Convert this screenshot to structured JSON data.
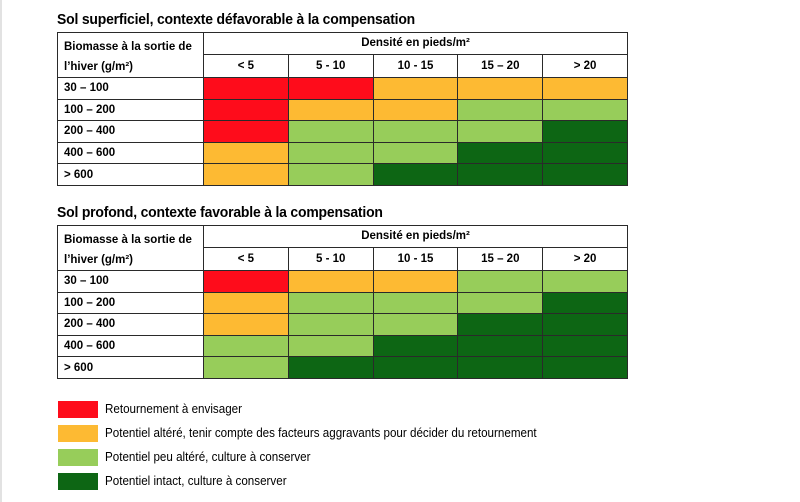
{
  "tables": [
    {
      "title": "Sol superficiel, contexte défavorable à la compensation",
      "row_header": "Biomasse à la sortie de l’hiver (g/m²)",
      "row_header_line1": "Biomasse à la sortie de",
      "row_header_line2": "l’hiver (g/m²)",
      "col_header": "Densité en pieds/m²",
      "columns": [
        "< 5",
        "5 - 10",
        "10 - 15",
        "15 – 20",
        "> 20"
      ],
      "rows": [
        {
          "label": "30 – 100",
          "cells": [
            "red",
            "red",
            "orange",
            "orange",
            "orange"
          ]
        },
        {
          "label": "100 – 200",
          "cells": [
            "red",
            "orange",
            "orange",
            "lightgreen",
            "lightgreen"
          ]
        },
        {
          "label": "200 – 400",
          "cells": [
            "red",
            "lightgreen",
            "lightgreen",
            "lightgreen",
            "darkgreen"
          ]
        },
        {
          "label": "400 – 600",
          "cells": [
            "orange",
            "lightgreen",
            "lightgreen",
            "darkgreen",
            "darkgreen"
          ]
        },
        {
          "label": "> 600",
          "cells": [
            "orange",
            "lightgreen",
            "darkgreen",
            "darkgreen",
            "darkgreen"
          ]
        }
      ]
    },
    {
      "title": "Sol profond, contexte favorable à la compensation",
      "row_header": "Biomasse à la sortie de l’hiver (g/m²)",
      "row_header_line1": "Biomasse à la sortie de",
      "row_header_line2": "l’hiver (g/m²)",
      "col_header": "Densité en pieds/m²",
      "columns": [
        "< 5",
        "5 - 10",
        "10 - 15",
        "15 – 20",
        "> 20"
      ],
      "rows": [
        {
          "label": "30 – 100",
          "cells": [
            "red",
            "orange",
            "orange",
            "lightgreen",
            "lightgreen"
          ]
        },
        {
          "label": "100 – 200",
          "cells": [
            "orange",
            "lightgreen",
            "lightgreen",
            "lightgreen",
            "darkgreen"
          ]
        },
        {
          "label": "200 – 400",
          "cells": [
            "orange",
            "lightgreen",
            "lightgreen",
            "darkgreen",
            "darkgreen"
          ]
        },
        {
          "label": "400 – 600",
          "cells": [
            "lightgreen",
            "lightgreen",
            "darkgreen",
            "darkgreen",
            "darkgreen"
          ]
        },
        {
          "label": "> 600",
          "cells": [
            "lightgreen",
            "darkgreen",
            "darkgreen",
            "darkgreen",
            "darkgreen"
          ]
        }
      ]
    }
  ],
  "legend": [
    {
      "color_key": "red",
      "color": "#fe0c1b",
      "label": "Retournement à envisager"
    },
    {
      "color_key": "orange",
      "color": "#fdba33",
      "label": "Potentiel altéré, tenir compte des facteurs aggravants pour décider du retournement"
    },
    {
      "color_key": "lightgreen",
      "color": "#97cd5a",
      "label": "Potentiel peu altéré, culture à conserver"
    },
    {
      "color_key": "darkgreen",
      "color": "#0d6614",
      "label": "Potentiel intact, culture à conserver"
    }
  ]
}
